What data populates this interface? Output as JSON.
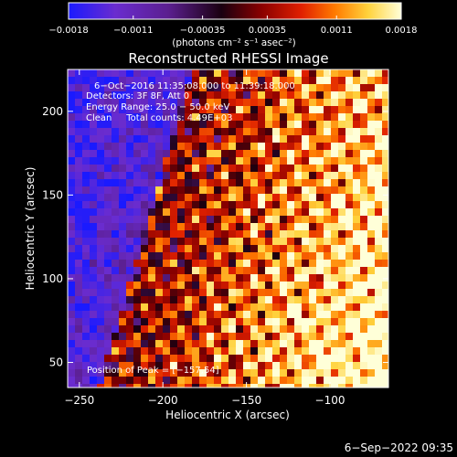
{
  "chart_data": {
    "type": "heatmap",
    "title": "Reconstructed RHESSI Image",
    "xlabel": "Heliocentric X (arcsec)",
    "ylabel": "Heliocentric Y (arcsec)",
    "xlim": [
      -257,
      -65
    ],
    "ylim": [
      35,
      225
    ],
    "x_ticks": [
      -250,
      -200,
      -150,
      -100
    ],
    "x_tick_labels": [
      "−250",
      "−200",
      "−150",
      "−100"
    ],
    "y_ticks": [
      50,
      100,
      150,
      200
    ],
    "y_tick_labels": [
      "50",
      "100",
      "150",
      "200"
    ],
    "colorbar": {
      "min": -0.0018,
      "max": 0.0018,
      "ticks": [
        -0.0018,
        -0.0011,
        -0.00035,
        0.00035,
        0.0011,
        0.0018
      ],
      "tick_labels": [
        "−0.0018",
        "−0.0011",
        "−0.00035",
        "0.00035",
        "0.0011",
        "0.0018"
      ],
      "units_label": "(photons cm⁻² s⁻¹ asec⁻²)",
      "colors": [
        "#1a1aff",
        "#6a2ccf",
        "#5b1f8f",
        "#1a0010",
        "#8a0000",
        "#e02000",
        "#ff7a00",
        "#ffd23c",
        "#ffffd8"
      ]
    },
    "annotations": [
      "6−Oct−2016 11:35:08.000 to 11:39:18.000",
      "Detectors: 3F 8F, Att 0",
      "Energy Range: 25.0 − 50.0 keV",
      "Clean     Total counts: 4.49E+03"
    ],
    "peak_label": "Position of Peak = [−157,54]",
    "grid": false
  },
  "footer": {
    "timestamp": "6−Sep−2022 09:35"
  }
}
